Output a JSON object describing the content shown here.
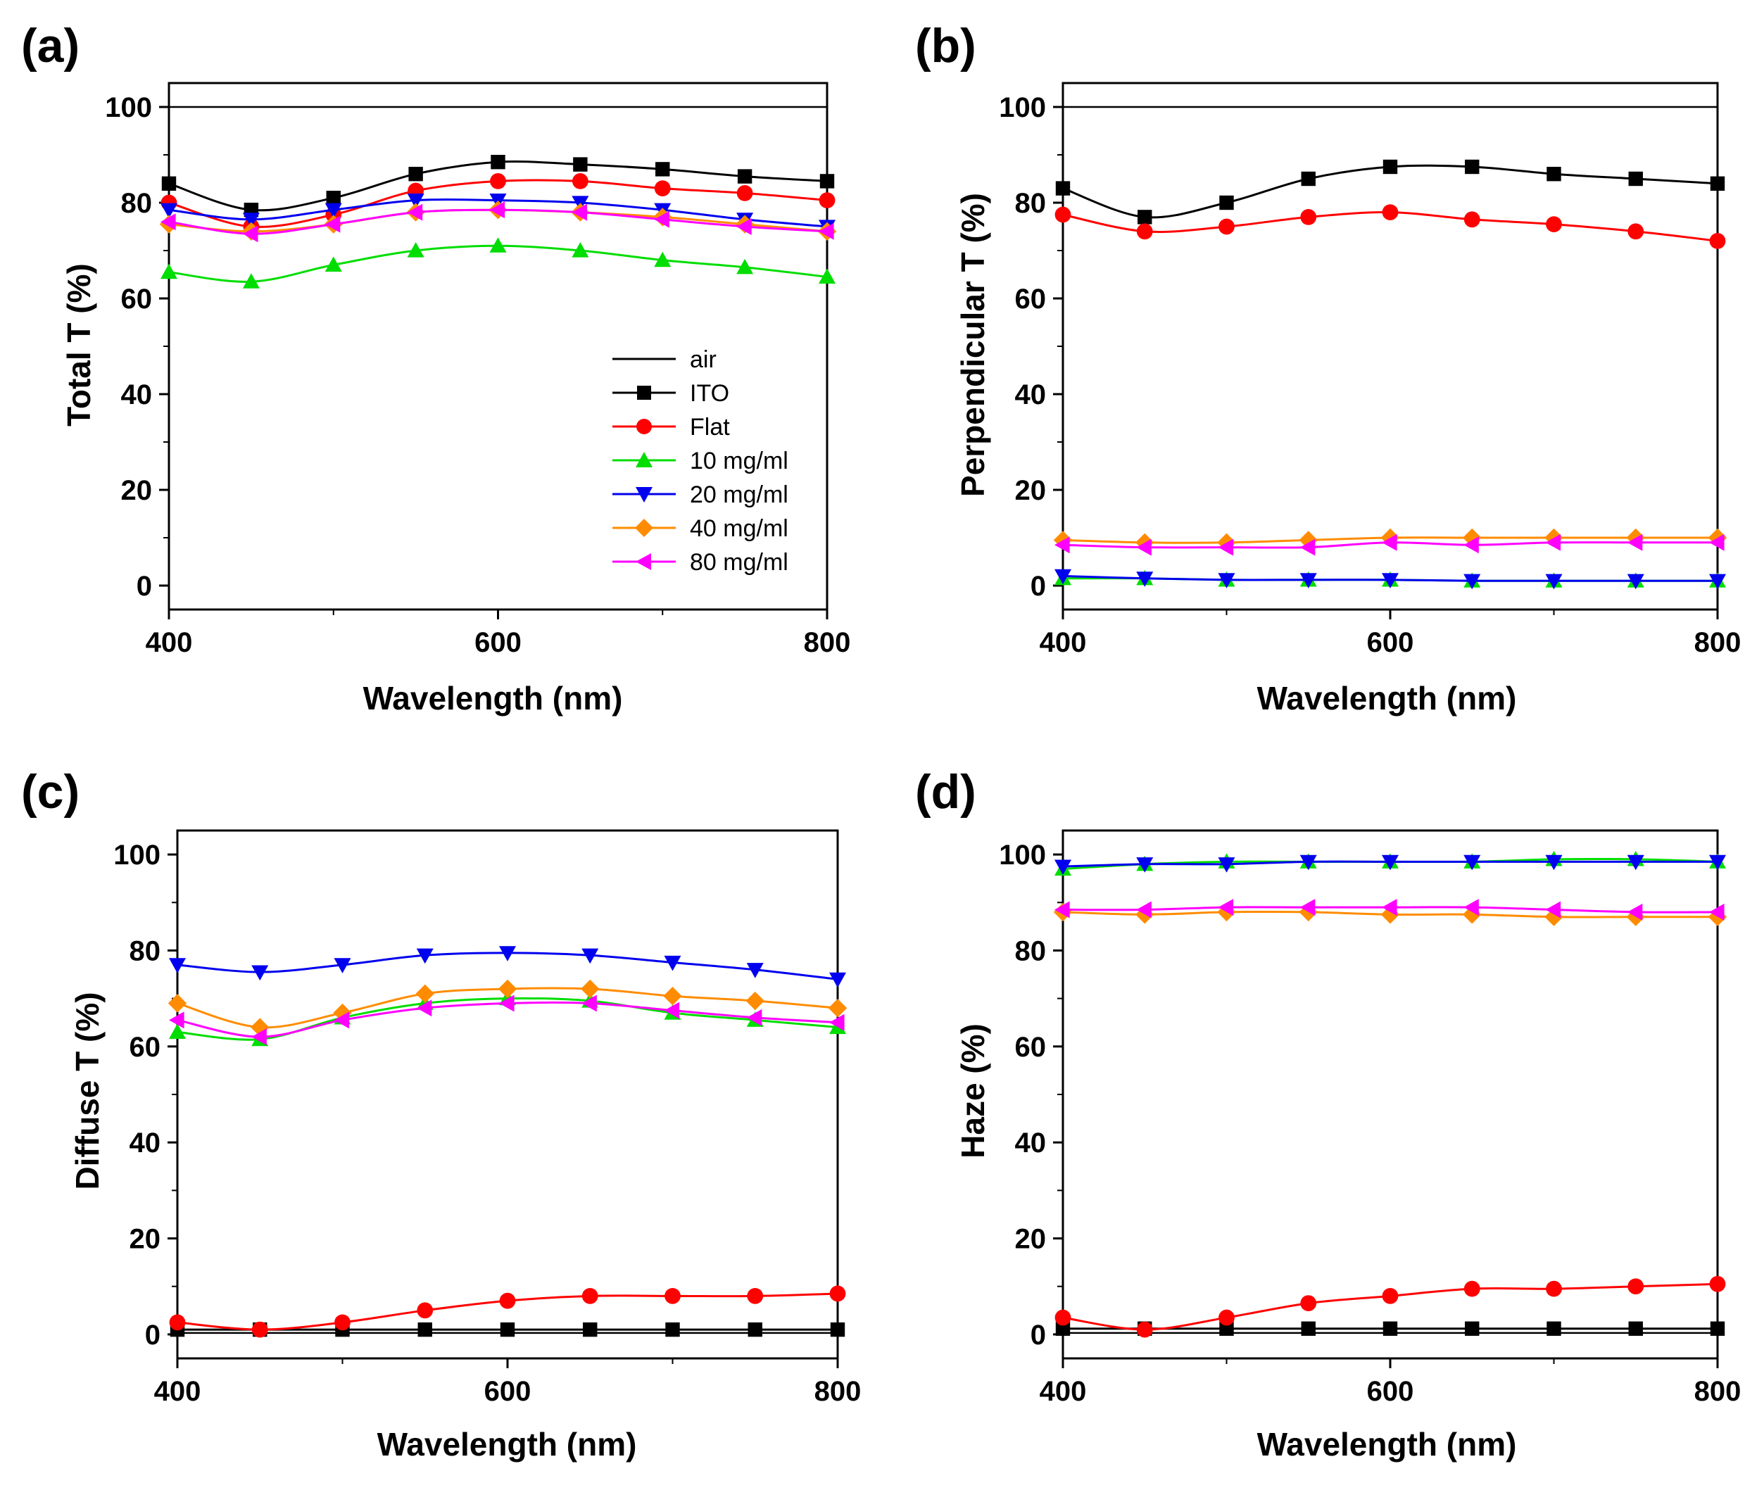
{
  "figure": {
    "legend": [
      {
        "name": "air",
        "color": "#000000",
        "marker": "none"
      },
      {
        "name": "ITO",
        "color": "#000000",
        "marker": "square"
      },
      {
        "name": "Flat",
        "color": "#ff0000",
        "marker": "circle"
      },
      {
        "name": "10 mg/ml",
        "color": "#00dd00",
        "marker": "triangle-up"
      },
      {
        "name": "20 mg/ml",
        "color": "#0000ee",
        "marker": "triangle-down"
      },
      {
        "name": "40 mg/ml",
        "color": "#ff8c00",
        "marker": "diamond"
      },
      {
        "name": "80 mg/ml",
        "color": "#ff00ff",
        "marker": "triangle-left"
      }
    ]
  },
  "chart_data": [
    {
      "type": "line",
      "panel": "(a)",
      "xlabel": "Wavelength (nm)",
      "ylabel": "Total T (%)",
      "xlim": [
        400,
        800
      ],
      "ylim": [
        -5,
        105
      ],
      "xticks": [
        "400",
        "600",
        "800"
      ],
      "yticks": [
        "0",
        "20",
        "40",
        "60",
        "80",
        "100"
      ],
      "legend_position": "lower-right",
      "x": [
        400,
        450,
        500,
        550,
        600,
        650,
        700,
        750,
        800
      ],
      "series": [
        {
          "name": "air",
          "values": [
            100,
            100,
            100,
            100,
            100,
            100,
            100,
            100,
            100
          ]
        },
        {
          "name": "ITO",
          "values": [
            84,
            78.5,
            81,
            86,
            88.5,
            88,
            87,
            85.5,
            84.5
          ]
        },
        {
          "name": "Flat",
          "values": [
            80,
            75,
            77.5,
            82.5,
            84.5,
            84.5,
            83,
            82,
            80.5
          ]
        },
        {
          "name": "10 mg/ml",
          "values": [
            65.5,
            63.5,
            67,
            70,
            71,
            70,
            68,
            66.5,
            64.5
          ]
        },
        {
          "name": "20 mg/ml",
          "values": [
            78.5,
            76.5,
            78.5,
            80.5,
            80.5,
            80,
            78.5,
            76.5,
            75
          ]
        },
        {
          "name": "40 mg/ml",
          "values": [
            75.5,
            74,
            75.5,
            78,
            78.5,
            78,
            77,
            75.5,
            74
          ]
        },
        {
          "name": "80 mg/ml",
          "values": [
            76,
            73.5,
            75.5,
            78,
            78.5,
            78,
            76.5,
            75,
            74
          ]
        }
      ]
    },
    {
      "type": "line",
      "panel": "(b)",
      "xlabel": "Wavelength (nm)",
      "ylabel": "Perpendicular T (%)",
      "xlim": [
        400,
        800
      ],
      "ylim": [
        -5,
        105
      ],
      "xticks": [
        "400",
        "600",
        "800"
      ],
      "yticks": [
        "0",
        "20",
        "40",
        "60",
        "80",
        "100"
      ],
      "x": [
        400,
        450,
        500,
        550,
        600,
        650,
        700,
        750,
        800
      ],
      "series": [
        {
          "name": "air",
          "values": [
            100,
            100,
            100,
            100,
            100,
            100,
            100,
            100,
            100
          ]
        },
        {
          "name": "ITO",
          "values": [
            83,
            77,
            80,
            85,
            87.5,
            87.5,
            86,
            85,
            84
          ]
        },
        {
          "name": "Flat",
          "values": [
            77.5,
            74,
            75,
            77,
            78,
            76.5,
            75.5,
            74,
            72
          ]
        },
        {
          "name": "10 mg/ml",
          "values": [
            1.5,
            1.5,
            1.2,
            1.2,
            1.2,
            1,
            1,
            1,
            1
          ]
        },
        {
          "name": "20 mg/ml",
          "values": [
            2,
            1.5,
            1.2,
            1.2,
            1.2,
            1,
            1,
            1,
            1
          ]
        },
        {
          "name": "40 mg/ml",
          "values": [
            9.5,
            9,
            9,
            9.5,
            10,
            10,
            10,
            10,
            10
          ]
        },
        {
          "name": "80 mg/ml",
          "values": [
            8.5,
            8,
            8,
            8,
            9,
            8.5,
            9,
            9,
            9
          ]
        }
      ]
    },
    {
      "type": "line",
      "panel": "(c)",
      "xlabel": "Wavelength (nm)",
      "ylabel": "Diffuse T (%)",
      "xlim": [
        400,
        800
      ],
      "ylim": [
        -5,
        105
      ],
      "xticks": [
        "400",
        "600",
        "800"
      ],
      "yticks": [
        "0",
        "20",
        "40",
        "60",
        "80",
        "100"
      ],
      "x": [
        400,
        450,
        500,
        550,
        600,
        650,
        700,
        750,
        800
      ],
      "series": [
        {
          "name": "air",
          "values": [
            0.3,
            0.3,
            0.3,
            0.3,
            0.3,
            0.3,
            0.3,
            0.3,
            0.3
          ]
        },
        {
          "name": "ITO",
          "values": [
            1,
            1,
            1,
            1,
            1,
            1,
            1,
            1,
            1
          ]
        },
        {
          "name": "Flat",
          "values": [
            2.5,
            1,
            2.5,
            5,
            7,
            8,
            8,
            8,
            8.5
          ]
        },
        {
          "name": "10 mg/ml",
          "values": [
            63,
            61.5,
            66,
            69,
            70,
            69.5,
            67,
            65.5,
            64
          ]
        },
        {
          "name": "20 mg/ml",
          "values": [
            77,
            75.5,
            77,
            79,
            79.5,
            79,
            77.5,
            76,
            74
          ]
        },
        {
          "name": "40 mg/ml",
          "values": [
            69,
            64,
            67,
            71,
            72,
            72,
            70.5,
            69.5,
            68
          ]
        },
        {
          "name": "80 mg/ml",
          "values": [
            65.5,
            62,
            65.5,
            68,
            69,
            69,
            67.5,
            66,
            65
          ]
        }
      ]
    },
    {
      "type": "line",
      "panel": "(d)",
      "xlabel": "Wavelength (nm)",
      "ylabel": "Haze (%)",
      "xlim": [
        400,
        800
      ],
      "ylim": [
        -5,
        105
      ],
      "xticks": [
        "400",
        "600",
        "800"
      ],
      "yticks": [
        "0",
        "20",
        "40",
        "60",
        "80",
        "100"
      ],
      "x": [
        400,
        450,
        500,
        550,
        600,
        650,
        700,
        750,
        800
      ],
      "series": [
        {
          "name": "air",
          "values": [
            0.3,
            0.3,
            0.3,
            0.3,
            0.3,
            0.3,
            0.3,
            0.3,
            0.3
          ]
        },
        {
          "name": "ITO",
          "values": [
            1.2,
            1.2,
            1.2,
            1.2,
            1.2,
            1.2,
            1.2,
            1.2,
            1.2
          ]
        },
        {
          "name": "Flat",
          "values": [
            3.5,
            1,
            3.5,
            6.5,
            8,
            9.5,
            9.5,
            10,
            10.5
          ]
        },
        {
          "name": "10 mg/ml",
          "values": [
            97,
            98,
            98.5,
            98.5,
            98.5,
            98.5,
            99,
            99,
            98.5
          ]
        },
        {
          "name": "20 mg/ml",
          "values": [
            97.5,
            98,
            98,
            98.5,
            98.5,
            98.5,
            98.5,
            98.5,
            98.5
          ]
        },
        {
          "name": "40 mg/ml",
          "values": [
            88,
            87.5,
            88,
            88,
            87.5,
            87.5,
            87,
            87,
            87
          ]
        },
        {
          "name": "80 mg/ml",
          "values": [
            88.5,
            88.5,
            89,
            89,
            89,
            89,
            88.5,
            88,
            88
          ]
        }
      ]
    }
  ]
}
